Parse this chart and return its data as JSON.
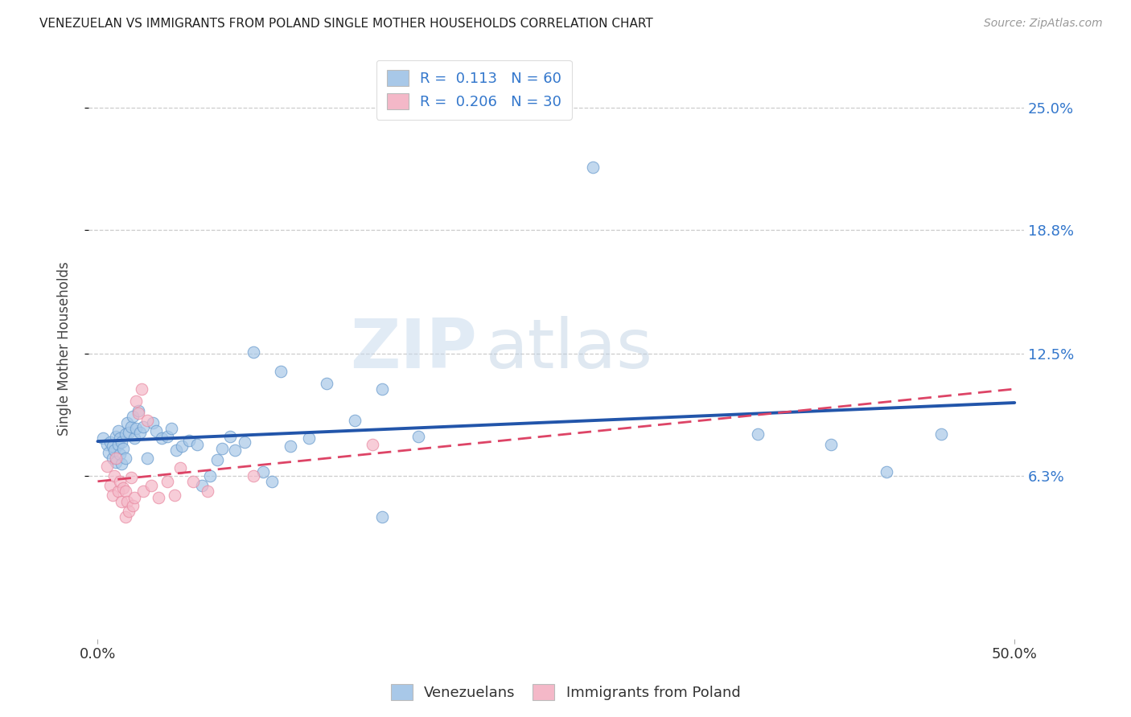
{
  "title": "VENEZUELAN VS IMMIGRANTS FROM POLAND SINGLE MOTHER HOUSEHOLDS CORRELATION CHART",
  "source": "Source: ZipAtlas.com",
  "ylabel": "Single Mother Households",
  "ytick_vals": [
    0.063,
    0.125,
    0.188,
    0.25
  ],
  "ytick_labels": [
    "6.3%",
    "12.5%",
    "18.8%",
    "25.0%"
  ],
  "xtick_vals": [
    0.0,
    0.5
  ],
  "xtick_labels": [
    "0.0%",
    "50.0%"
  ],
  "xlim": [
    -0.005,
    0.505
  ],
  "ylim": [
    -0.02,
    0.275
  ],
  "legend_blue_r": "0.113",
  "legend_blue_n": "60",
  "legend_pink_r": "0.206",
  "legend_pink_n": "30",
  "watermark_zip": "ZIP",
  "watermark_atlas": "atlas",
  "blue_color": "#a8c8e8",
  "pink_color": "#f4b8c8",
  "blue_edge_color": "#6699cc",
  "pink_edge_color": "#e888a0",
  "blue_line_color": "#2255aa",
  "pink_line_color": "#dd4466",
  "blue_scatter": [
    [
      0.003,
      0.082
    ],
    [
      0.005,
      0.079
    ],
    [
      0.006,
      0.075
    ],
    [
      0.007,
      0.08
    ],
    [
      0.008,
      0.072
    ],
    [
      0.008,
      0.078
    ],
    [
      0.009,
      0.076
    ],
    [
      0.01,
      0.083
    ],
    [
      0.01,
      0.07
    ],
    [
      0.011,
      0.079
    ],
    [
      0.011,
      0.086
    ],
    [
      0.012,
      0.082
    ],
    [
      0.012,
      0.074
    ],
    [
      0.013,
      0.08
    ],
    [
      0.013,
      0.069
    ],
    [
      0.014,
      0.077
    ],
    [
      0.015,
      0.084
    ],
    [
      0.015,
      0.072
    ],
    [
      0.016,
      0.09
    ],
    [
      0.017,
      0.085
    ],
    [
      0.018,
      0.088
    ],
    [
      0.019,
      0.093
    ],
    [
      0.02,
      0.082
    ],
    [
      0.021,
      0.087
    ],
    [
      0.022,
      0.096
    ],
    [
      0.023,
      0.085
    ],
    [
      0.025,
      0.088
    ],
    [
      0.027,
      0.072
    ],
    [
      0.03,
      0.09
    ],
    [
      0.032,
      0.086
    ],
    [
      0.035,
      0.082
    ],
    [
      0.038,
      0.083
    ],
    [
      0.04,
      0.087
    ],
    [
      0.043,
      0.076
    ],
    [
      0.046,
      0.078
    ],
    [
      0.05,
      0.081
    ],
    [
      0.054,
      0.079
    ],
    [
      0.057,
      0.058
    ],
    [
      0.061,
      0.063
    ],
    [
      0.065,
      0.071
    ],
    [
      0.068,
      0.077
    ],
    [
      0.072,
      0.083
    ],
    [
      0.075,
      0.076
    ],
    [
      0.08,
      0.08
    ],
    [
      0.085,
      0.126
    ],
    [
      0.09,
      0.065
    ],
    [
      0.095,
      0.06
    ],
    [
      0.1,
      0.116
    ],
    [
      0.105,
      0.078
    ],
    [
      0.115,
      0.082
    ],
    [
      0.125,
      0.11
    ],
    [
      0.14,
      0.091
    ],
    [
      0.155,
      0.107
    ],
    [
      0.175,
      0.083
    ],
    [
      0.27,
      0.22
    ],
    [
      0.155,
      0.042
    ],
    [
      0.36,
      0.084
    ],
    [
      0.4,
      0.079
    ],
    [
      0.43,
      0.065
    ],
    [
      0.46,
      0.084
    ]
  ],
  "pink_scatter": [
    [
      0.005,
      0.068
    ],
    [
      0.007,
      0.058
    ],
    [
      0.008,
      0.053
    ],
    [
      0.009,
      0.063
    ],
    [
      0.01,
      0.072
    ],
    [
      0.011,
      0.055
    ],
    [
      0.012,
      0.06
    ],
    [
      0.013,
      0.05
    ],
    [
      0.014,
      0.057
    ],
    [
      0.015,
      0.042
    ],
    [
      0.015,
      0.055
    ],
    [
      0.016,
      0.05
    ],
    [
      0.017,
      0.045
    ],
    [
      0.018,
      0.062
    ],
    [
      0.019,
      0.048
    ],
    [
      0.02,
      0.052
    ],
    [
      0.021,
      0.101
    ],
    [
      0.022,
      0.095
    ],
    [
      0.024,
      0.107
    ],
    [
      0.025,
      0.055
    ],
    [
      0.027,
      0.091
    ],
    [
      0.029,
      0.058
    ],
    [
      0.033,
      0.052
    ],
    [
      0.038,
      0.06
    ],
    [
      0.042,
      0.053
    ],
    [
      0.045,
      0.067
    ],
    [
      0.052,
      0.06
    ],
    [
      0.06,
      0.055
    ],
    [
      0.085,
      0.063
    ],
    [
      0.15,
      0.079
    ]
  ]
}
